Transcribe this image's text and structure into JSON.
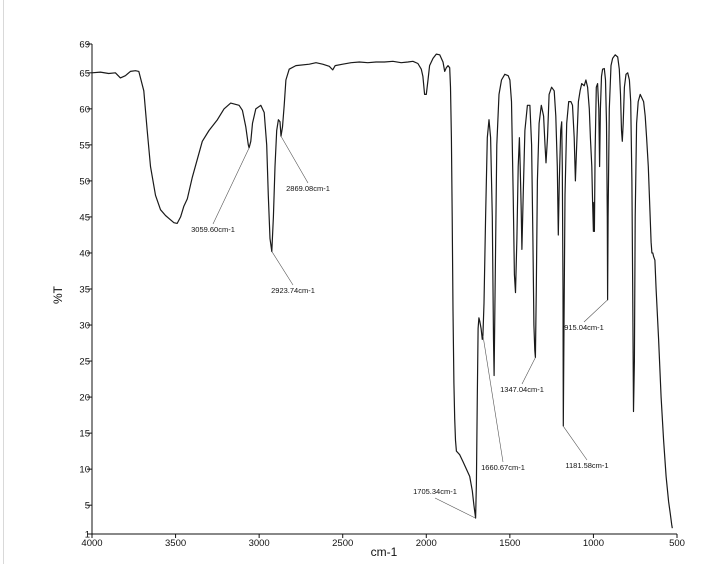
{
  "chart_data": {
    "type": "line",
    "xlabel": "cm-1",
    "ylabel": "%T",
    "xlim": [
      4000,
      500
    ],
    "ylim": [
      1,
      69
    ],
    "x_axis_reversed": true,
    "grid": false,
    "x_ticks": [
      "4000",
      "3500",
      "3000",
      "2500",
      "2000",
      "1500",
      "1000",
      "500"
    ],
    "y_ticks": [
      "1",
      "5",
      "10",
      "15",
      "20",
      "25",
      "30",
      "35",
      "40",
      "45",
      "50",
      "55",
      "60",
      "65",
      "69"
    ],
    "series": [
      {
        "color": "#1a1a1a",
        "points": [
          [
            4000,
            65.0
          ],
          [
            3950,
            65.1
          ],
          [
            3900,
            64.9
          ],
          [
            3860,
            65.0
          ],
          [
            3830,
            64.3
          ],
          [
            3800,
            64.6
          ],
          [
            3770,
            65.2
          ],
          [
            3740,
            65.3
          ],
          [
            3720,
            65.2
          ],
          [
            3690,
            62.5
          ],
          [
            3670,
            57.0
          ],
          [
            3650,
            52.0
          ],
          [
            3620,
            48.0
          ],
          [
            3590,
            46.0
          ],
          [
            3560,
            45.2
          ],
          [
            3540,
            44.8
          ],
          [
            3510,
            44.2
          ],
          [
            3490,
            44.1
          ],
          [
            3470,
            45.0
          ],
          [
            3450,
            46.5
          ],
          [
            3430,
            47.5
          ],
          [
            3400,
            50.5
          ],
          [
            3370,
            53.0
          ],
          [
            3340,
            55.5
          ],
          [
            3300,
            57.0
          ],
          [
            3250,
            58.5
          ],
          [
            3210,
            60.0
          ],
          [
            3170,
            60.8
          ],
          [
            3120,
            60.5
          ],
          [
            3100,
            59.8
          ],
          [
            3080,
            57.5
          ],
          [
            3065,
            55.0
          ],
          [
            3060,
            54.6
          ],
          [
            3050,
            55.5
          ],
          [
            3040,
            58.0
          ],
          [
            3020,
            60.0
          ],
          [
            2990,
            60.5
          ],
          [
            2970,
            59.5
          ],
          [
            2955,
            55.0
          ],
          [
            2945,
            48.0
          ],
          [
            2935,
            42.0
          ],
          [
            2924,
            40.2
          ],
          [
            2915,
            45.0
          ],
          [
            2905,
            52.0
          ],
          [
            2895,
            57.0
          ],
          [
            2885,
            58.5
          ],
          [
            2875,
            58.2
          ],
          [
            2869,
            56.2
          ],
          [
            2860,
            57.5
          ],
          [
            2850,
            60.5
          ],
          [
            2840,
            64.0
          ],
          [
            2820,
            65.5
          ],
          [
            2780,
            66.0
          ],
          [
            2700,
            66.2
          ],
          [
            2660,
            66.4
          ],
          [
            2620,
            66.2
          ],
          [
            2580,
            65.9
          ],
          [
            2560,
            65.4
          ],
          [
            2545,
            66.0
          ],
          [
            2500,
            66.2
          ],
          [
            2450,
            66.4
          ],
          [
            2400,
            66.5
          ],
          [
            2350,
            66.4
          ],
          [
            2300,
            66.5
          ],
          [
            2250,
            66.5
          ],
          [
            2200,
            66.6
          ],
          [
            2150,
            66.4
          ],
          [
            2110,
            66.5
          ],
          [
            2080,
            66.6
          ],
          [
            2050,
            66.3
          ],
          [
            2030,
            65.5
          ],
          [
            2020,
            64.5
          ],
          [
            2010,
            62.0
          ],
          [
            2000,
            62.0
          ],
          [
            1990,
            64.0
          ],
          [
            1980,
            66.0
          ],
          [
            1960,
            67.0
          ],
          [
            1940,
            67.6
          ],
          [
            1920,
            67.5
          ],
          [
            1900,
            66.5
          ],
          [
            1890,
            65.2
          ],
          [
            1880,
            65.7
          ],
          [
            1870,
            66.0
          ],
          [
            1860,
            65.7
          ],
          [
            1855,
            63.0
          ],
          [
            1850,
            56.0
          ],
          [
            1845,
            45.0
          ],
          [
            1840,
            32.0
          ],
          [
            1835,
            22.0
          ],
          [
            1830,
            17.0
          ],
          [
            1825,
            14.0
          ],
          [
            1820,
            12.5
          ],
          [
            1800,
            12.0
          ],
          [
            1780,
            11.0
          ],
          [
            1760,
            10.0
          ],
          [
            1740,
            9.0
          ],
          [
            1725,
            7.0
          ],
          [
            1715,
            5.0
          ],
          [
            1705,
            3.2
          ],
          [
            1700,
            8.0
          ],
          [
            1695,
            20.0
          ],
          [
            1690,
            29.5
          ],
          [
            1685,
            31.0
          ],
          [
            1680,
            30.5
          ],
          [
            1672,
            29.5
          ],
          [
            1665,
            28.0
          ],
          [
            1661,
            28.5
          ],
          [
            1655,
            33.0
          ],
          [
            1645,
            45.0
          ],
          [
            1635,
            56.0
          ],
          [
            1625,
            58.5
          ],
          [
            1615,
            56.0
          ],
          [
            1605,
            45.0
          ],
          [
            1598,
            28.0
          ],
          [
            1594,
            23.0
          ],
          [
            1588,
            35.0
          ],
          [
            1578,
            55.0
          ],
          [
            1565,
            62.0
          ],
          [
            1550,
            64.0
          ],
          [
            1530,
            64.8
          ],
          [
            1510,
            64.6
          ],
          [
            1500,
            64.0
          ],
          [
            1490,
            61.0
          ],
          [
            1480,
            48.0
          ],
          [
            1473,
            37.0
          ],
          [
            1466,
            34.5
          ],
          [
            1458,
            42.0
          ],
          [
            1450,
            52.0
          ],
          [
            1443,
            56.0
          ],
          [
            1438,
            52.0
          ],
          [
            1432,
            46.0
          ],
          [
            1428,
            40.5
          ],
          [
            1420,
            48.0
          ],
          [
            1410,
            57.0
          ],
          [
            1395,
            60.5
          ],
          [
            1380,
            60.5
          ],
          [
            1370,
            55.0
          ],
          [
            1362,
            42.0
          ],
          [
            1356,
            30.0
          ],
          [
            1351,
            26.5
          ],
          [
            1347,
            25.5
          ],
          [
            1342,
            35.0
          ],
          [
            1335,
            50.0
          ],
          [
            1325,
            58.0
          ],
          [
            1312,
            60.5
          ],
          [
            1298,
            59.0
          ],
          [
            1290,
            55.0
          ],
          [
            1284,
            52.5
          ],
          [
            1275,
            56.0
          ],
          [
            1265,
            62.0
          ],
          [
            1250,
            63.0
          ],
          [
            1235,
            62.5
          ],
          [
            1225,
            59.0
          ],
          [
            1216,
            52.0
          ],
          [
            1210,
            42.5
          ],
          [
            1204,
            50.0
          ],
          [
            1196,
            57.0
          ],
          [
            1190,
            58.2
          ],
          [
            1186,
            52.0
          ],
          [
            1182,
            35.0
          ],
          [
            1180,
            16.0
          ],
          [
            1176,
            30.0
          ],
          [
            1170,
            48.0
          ],
          [
            1160,
            58.0
          ],
          [
            1148,
            61.0
          ],
          [
            1135,
            61.0
          ],
          [
            1125,
            60.5
          ],
          [
            1115,
            56.0
          ],
          [
            1108,
            50.0
          ],
          [
            1100,
            55.0
          ],
          [
            1090,
            61.0
          ],
          [
            1080,
            62.5
          ],
          [
            1070,
            63.5
          ],
          [
            1055,
            63.2
          ],
          [
            1045,
            64.0
          ],
          [
            1035,
            63.0
          ],
          [
            1025,
            60.0
          ],
          [
            1018,
            56.0
          ],
          [
            1010,
            52.0
          ],
          [
            1005,
            47.0
          ],
          [
            1000,
            43.0
          ],
          [
            997,
            47.0
          ],
          [
            994,
            43.0
          ],
          [
            990,
            54.0
          ],
          [
            983,
            63.0
          ],
          [
            975,
            63.5
          ],
          [
            968,
            60.0
          ],
          [
            963,
            52.0
          ],
          [
            958,
            60.0
          ],
          [
            952,
            64.5
          ],
          [
            945,
            65.5
          ],
          [
            935,
            65.6
          ],
          [
            928,
            64.0
          ],
          [
            922,
            58.0
          ],
          [
            917,
            45.0
          ],
          [
            915,
            33.5
          ],
          [
            912,
            45.0
          ],
          [
            905,
            60.0
          ],
          [
            895,
            66.0
          ],
          [
            885,
            67.0
          ],
          [
            870,
            67.5
          ],
          [
            855,
            67.2
          ],
          [
            845,
            65.5
          ],
          [
            838,
            62.0
          ],
          [
            832,
            57.0
          ],
          [
            827,
            55.5
          ],
          [
            822,
            58.0
          ],
          [
            815,
            63.0
          ],
          [
            805,
            64.8
          ],
          [
            795,
            65.0
          ],
          [
            785,
            64.0
          ],
          [
            777,
            61.0
          ],
          [
            770,
            50.0
          ],
          [
            765,
            35.0
          ],
          [
            760,
            18.0
          ],
          [
            755,
            25.0
          ],
          [
            750,
            45.0
          ],
          [
            742,
            58.0
          ],
          [
            732,
            61.0
          ],
          [
            720,
            62.0
          ],
          [
            710,
            61.5
          ],
          [
            700,
            61.0
          ],
          [
            690,
            59.0
          ],
          [
            682,
            56.0
          ],
          [
            672,
            52.0
          ],
          [
            662,
            46.0
          ],
          [
            655,
            41.5
          ],
          [
            650,
            40.0
          ],
          [
            645,
            40.0
          ],
          [
            640,
            39.5
          ],
          [
            632,
            39.0
          ],
          [
            625,
            35.0
          ],
          [
            610,
            28.0
          ],
          [
            595,
            20.0
          ],
          [
            580,
            14.0
          ],
          [
            565,
            9.0
          ],
          [
            550,
            5.5
          ],
          [
            540,
            3.8
          ],
          [
            532,
            2.3
          ],
          [
            528,
            1.8
          ]
        ]
      }
    ],
    "annotations": [
      {
        "label": "3059.60cm-1",
        "x": 3059.6,
        "y": 54.6
      },
      {
        "label": "2869.08cm-1",
        "x": 2869.08,
        "y": 56.2
      },
      {
        "label": "2923.74cm-1",
        "x": 2923.74,
        "y": 40.2
      },
      {
        "label": "1705.34cm-1",
        "x": 1705.34,
        "y": 3.2
      },
      {
        "label": "1660.67cm-1",
        "x": 1660.67,
        "y": 28.5
      },
      {
        "label": "1347.04cm-1",
        "x": 1347.04,
        "y": 25.5
      },
      {
        "label": "1181.58cm-1",
        "x": 1181.58,
        "y": 16.0
      },
      {
        "label": "915.04cm-1",
        "x": 915.04,
        "y": 33.5
      }
    ]
  }
}
